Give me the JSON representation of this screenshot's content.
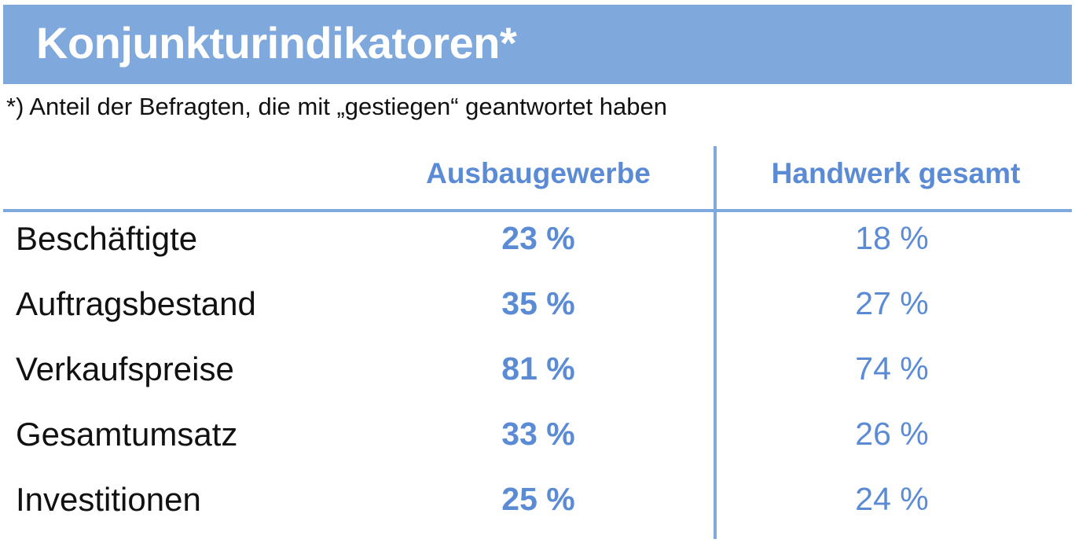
{
  "title": "Konjunkturindikatoren*",
  "subtitle": "*) Anteil der Befragten, die mit „gestiegen“ geantwortet haben",
  "colors": {
    "accent": "#7fa8dc",
    "value_text": "#5b8bd4",
    "label_text": "#111111",
    "title_text": "#ffffff"
  },
  "chart_data": {
    "type": "table",
    "title": "Konjunkturindikatoren*",
    "subtitle": "*) Anteil der Befragten, die mit „gestiegen“ geantwortet haben",
    "columns": [
      "Ausbaugewerbe",
      "Handwerk gesamt"
    ],
    "rows": [
      {
        "label": "Beschäftigte",
        "values": [
          "23 %",
          "18 %"
        ]
      },
      {
        "label": "Auftragsbestand",
        "values": [
          "35 %",
          "27 %"
        ]
      },
      {
        "label": "Verkaufspreise",
        "values": [
          "81 %",
          "74 %"
        ]
      },
      {
        "label": "Gesamtumsatz",
        "values": [
          "33 %",
          "26 %"
        ]
      },
      {
        "label": "Investitionen",
        "values": [
          "25 %",
          "24 %"
        ]
      }
    ],
    "series": [
      {
        "name": "Ausbaugewerbe",
        "values": [
          23,
          35,
          81,
          33,
          25
        ]
      },
      {
        "name": "Handwerk gesamt",
        "values": [
          18,
          27,
          74,
          26,
          24
        ]
      }
    ],
    "categories": [
      "Beschäftigte",
      "Auftragsbestand",
      "Verkaufspreise",
      "Gesamtumsatz",
      "Investitionen"
    ],
    "unit": "%"
  }
}
